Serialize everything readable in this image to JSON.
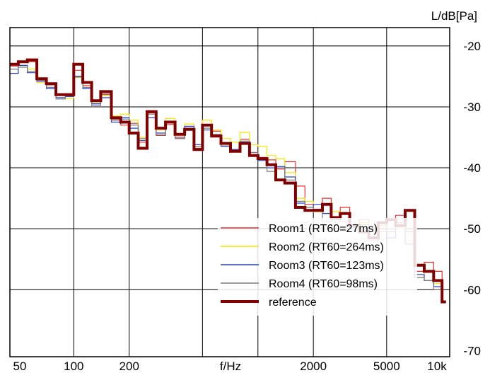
{
  "chart_data": {
    "type": "line",
    "step": true,
    "xscale": "log",
    "xlim": [
      45,
      11000
    ],
    "ylim": [
      -71,
      -17
    ],
    "y_unit": "L/dB[Pa]",
    "x_unit": "f/Hz",
    "x_ticks": [
      {
        "value": 50,
        "label": "50"
      },
      {
        "value": 100,
        "label": "100"
      },
      {
        "value": 200,
        "label": "200"
      },
      {
        "value": 2000,
        "label": "2000"
      },
      {
        "value": 5000,
        "label": "5000"
      },
      {
        "value": 10000,
        "label": "10k"
      }
    ],
    "x_gridlines": [
      100,
      200,
      500,
      1000,
      2000,
      5000
    ],
    "y_ticks": [
      {
        "value": -20,
        "label": "-20"
      },
      {
        "value": -30,
        "label": "-30"
      },
      {
        "value": -40,
        "label": "-40"
      },
      {
        "value": -50,
        "label": "-50"
      },
      {
        "value": -60,
        "label": "-60"
      },
      {
        "value": -70,
        "label": "-70"
      }
    ],
    "y_gridlines": [
      -20,
      -30,
      -40,
      -50,
      -60
    ],
    "legend_position": "bottom-center",
    "x": [
      45,
      50,
      56,
      63,
      71,
      80,
      90,
      100,
      112,
      125,
      140,
      160,
      180,
      200,
      224,
      250,
      280,
      315,
      355,
      400,
      450,
      500,
      560,
      630,
      710,
      800,
      900,
      1000,
      1120,
      1250,
      1400,
      1600,
      1800,
      2000,
      2240,
      2500,
      2800,
      3150,
      3550,
      4000,
      4500,
      5000,
      5600,
      6300,
      7100,
      8000,
      9000,
      10000,
      10500
    ],
    "series": [
      {
        "name": "Room1 (RT60=27ms)",
        "color": "#e83030",
        "width": 1.2,
        "values": [
          -23.3,
          -22.5,
          -22.6,
          -25.6,
          -26.4,
          -28.1,
          -28.3,
          -24.0,
          -26.5,
          -29.5,
          -27.9,
          -32.0,
          -33.0,
          -32.7,
          -35.8,
          -31.0,
          -34.7,
          -32.9,
          -35.0,
          -33.2,
          -36.8,
          -33.0,
          -34.0,
          -36.0,
          -37.1,
          -35.3,
          -37.5,
          -38.3,
          -38.7,
          -40.2,
          -39.0,
          -43.0,
          -46.0,
          -46.8,
          -45.0,
          -48.0,
          -46.5,
          -49.5,
          -48.5,
          -51.5,
          -50.0,
          -50.5,
          -47.8,
          -50.5,
          -57.0,
          -55.5,
          -57.0,
          -62.0,
          -62.0
        ]
      },
      {
        "name": "Room2 (RT60=264ms)",
        "color": "#f5e600",
        "width": 1.2,
        "values": [
          -24.5,
          -23.2,
          -23.8,
          -26.0,
          -26.8,
          -28.5,
          -28.6,
          -25.2,
          -26.8,
          -29.2,
          -28.2,
          -31.5,
          -31.2,
          -32.2,
          -35.0,
          -30.8,
          -33.8,
          -31.9,
          -34.5,
          -32.8,
          -36.2,
          -32.2,
          -33.8,
          -35.2,
          -35.8,
          -34.2,
          -36.2,
          -36.5,
          -38.0,
          -38.5,
          -40.8,
          -45.0,
          -45.5,
          -47.2,
          -46.0,
          -47.2,
          -47.5,
          -49.8,
          -49.0,
          -51.5,
          -49.5,
          -48.5,
          -50.0,
          -52.0,
          -58.0,
          -57.0,
          -59.0,
          -62.0,
          -62.0
        ]
      },
      {
        "name": "Room3 (RT60=123ms)",
        "color": "#2040e0",
        "width": 1.2,
        "values": [
          -24.5,
          -23.2,
          -24.4,
          -25.8,
          -27.0,
          -28.5,
          -28.3,
          -25.0,
          -27.0,
          -29.5,
          -28.5,
          -32.5,
          -31.8,
          -33.5,
          -35.5,
          -31.8,
          -34.3,
          -32.6,
          -35.2,
          -33.2,
          -36.2,
          -33.8,
          -34.8,
          -36.5,
          -37.0,
          -35.8,
          -38.0,
          -38.8,
          -40.0,
          -39.8,
          -41.5,
          -45.8,
          -47.0,
          -46.0,
          -47.5,
          -48.5,
          -48.8,
          -50.0,
          -49.3,
          -51.5,
          -49.0,
          -51.5,
          -49.5,
          -52.5,
          -57.5,
          -58.5,
          -59.5,
          -62.0,
          -62.0
        ]
      },
      {
        "name": "Room4 (RT60=98ms)",
        "color": "#7a7a7a",
        "width": 1.2,
        "values": [
          -23.8,
          -23.5,
          -24.2,
          -25.6,
          -26.8,
          -28.7,
          -28.2,
          -25.1,
          -26.8,
          -29.8,
          -28.0,
          -32.2,
          -32.0,
          -33.0,
          -35.2,
          -31.2,
          -34.6,
          -32.4,
          -35.2,
          -33.5,
          -36.5,
          -33.5,
          -34.5,
          -36.4,
          -37.2,
          -35.6,
          -37.5,
          -38.5,
          -40.6,
          -40.0,
          -42.0,
          -45.5,
          -46.5,
          -47.0,
          -48.8,
          -48.2,
          -48.8,
          -49.8,
          -49.3,
          -52.0,
          -50.5,
          -50.0,
          -49.0,
          -52.5,
          -58.0,
          -58.5,
          -60.0,
          -62.0,
          -62.0
        ]
      },
      {
        "name": "reference",
        "color": "#800000",
        "width": 4,
        "values": [
          -23.0,
          -22.6,
          -22.3,
          -25.4,
          -26.2,
          -28.0,
          -28.0,
          -23.0,
          -26.0,
          -29.0,
          -27.5,
          -31.8,
          -32.5,
          -34.3,
          -36.8,
          -30.8,
          -33.5,
          -32.5,
          -34.5,
          -33.7,
          -37.0,
          -33.0,
          -34.8,
          -36.0,
          -37.3,
          -36.0,
          -38.0,
          -38.5,
          -39.5,
          -42.0,
          -42.5,
          -46.5,
          -47.0,
          -47.0,
          -46.0,
          -48.2,
          -47.5,
          -49.5,
          -50.5,
          -51.5,
          -49.0,
          -48.5,
          -49.5,
          -47.0,
          -56.0,
          -57.0,
          -58.5,
          -62.0,
          -62.0
        ]
      }
    ]
  }
}
